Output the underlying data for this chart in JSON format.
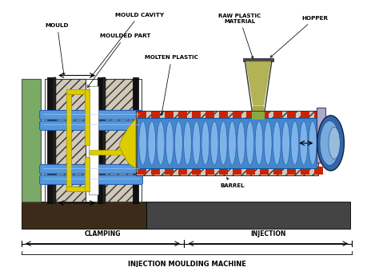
{
  "title": "INJECTION MOULDING MACHINE",
  "labels": {
    "mould": "MOULD",
    "mould_cavity": "MOULD CAVITY",
    "moulded_part": "MOULDED PART",
    "raw_plastic": "RAW PLASTIC\nMATERIAL",
    "hopper": "HOPPER",
    "molten_plastic": "MOLTEN PLASTIC",
    "barrel": "BARREL",
    "clamping": "CLAMPING",
    "injection": "INJECTION"
  },
  "colors": {
    "background": "#ffffff",
    "base_dark": "#3a2a1a",
    "base_right": "#555555",
    "mould_hatch": "#d8d0c0",
    "green_wall": "#7aaa66",
    "dark_bar": "#1a1a1a",
    "blue_rod": "#5599dd",
    "blue_rod_dark": "#2255aa",
    "yellow": "#ddcc00",
    "yellow_dark": "#aa9900",
    "barrel_hatch": "#d8d0c0",
    "barrel_blue": "#4488cc",
    "barrel_blue_dark": "#1155aa",
    "screw_light": "#88bbee",
    "red_band": "#cc2200",
    "hopper_outline": "#333333",
    "hopper_fill": "#aaaa44",
    "motor_blue": "#3366aa",
    "motor_light": "#77aadd",
    "white_cavity": "#ffffff",
    "label_color": "#000000"
  },
  "figsize": [
    4.74,
    3.35
  ],
  "dpi": 100
}
